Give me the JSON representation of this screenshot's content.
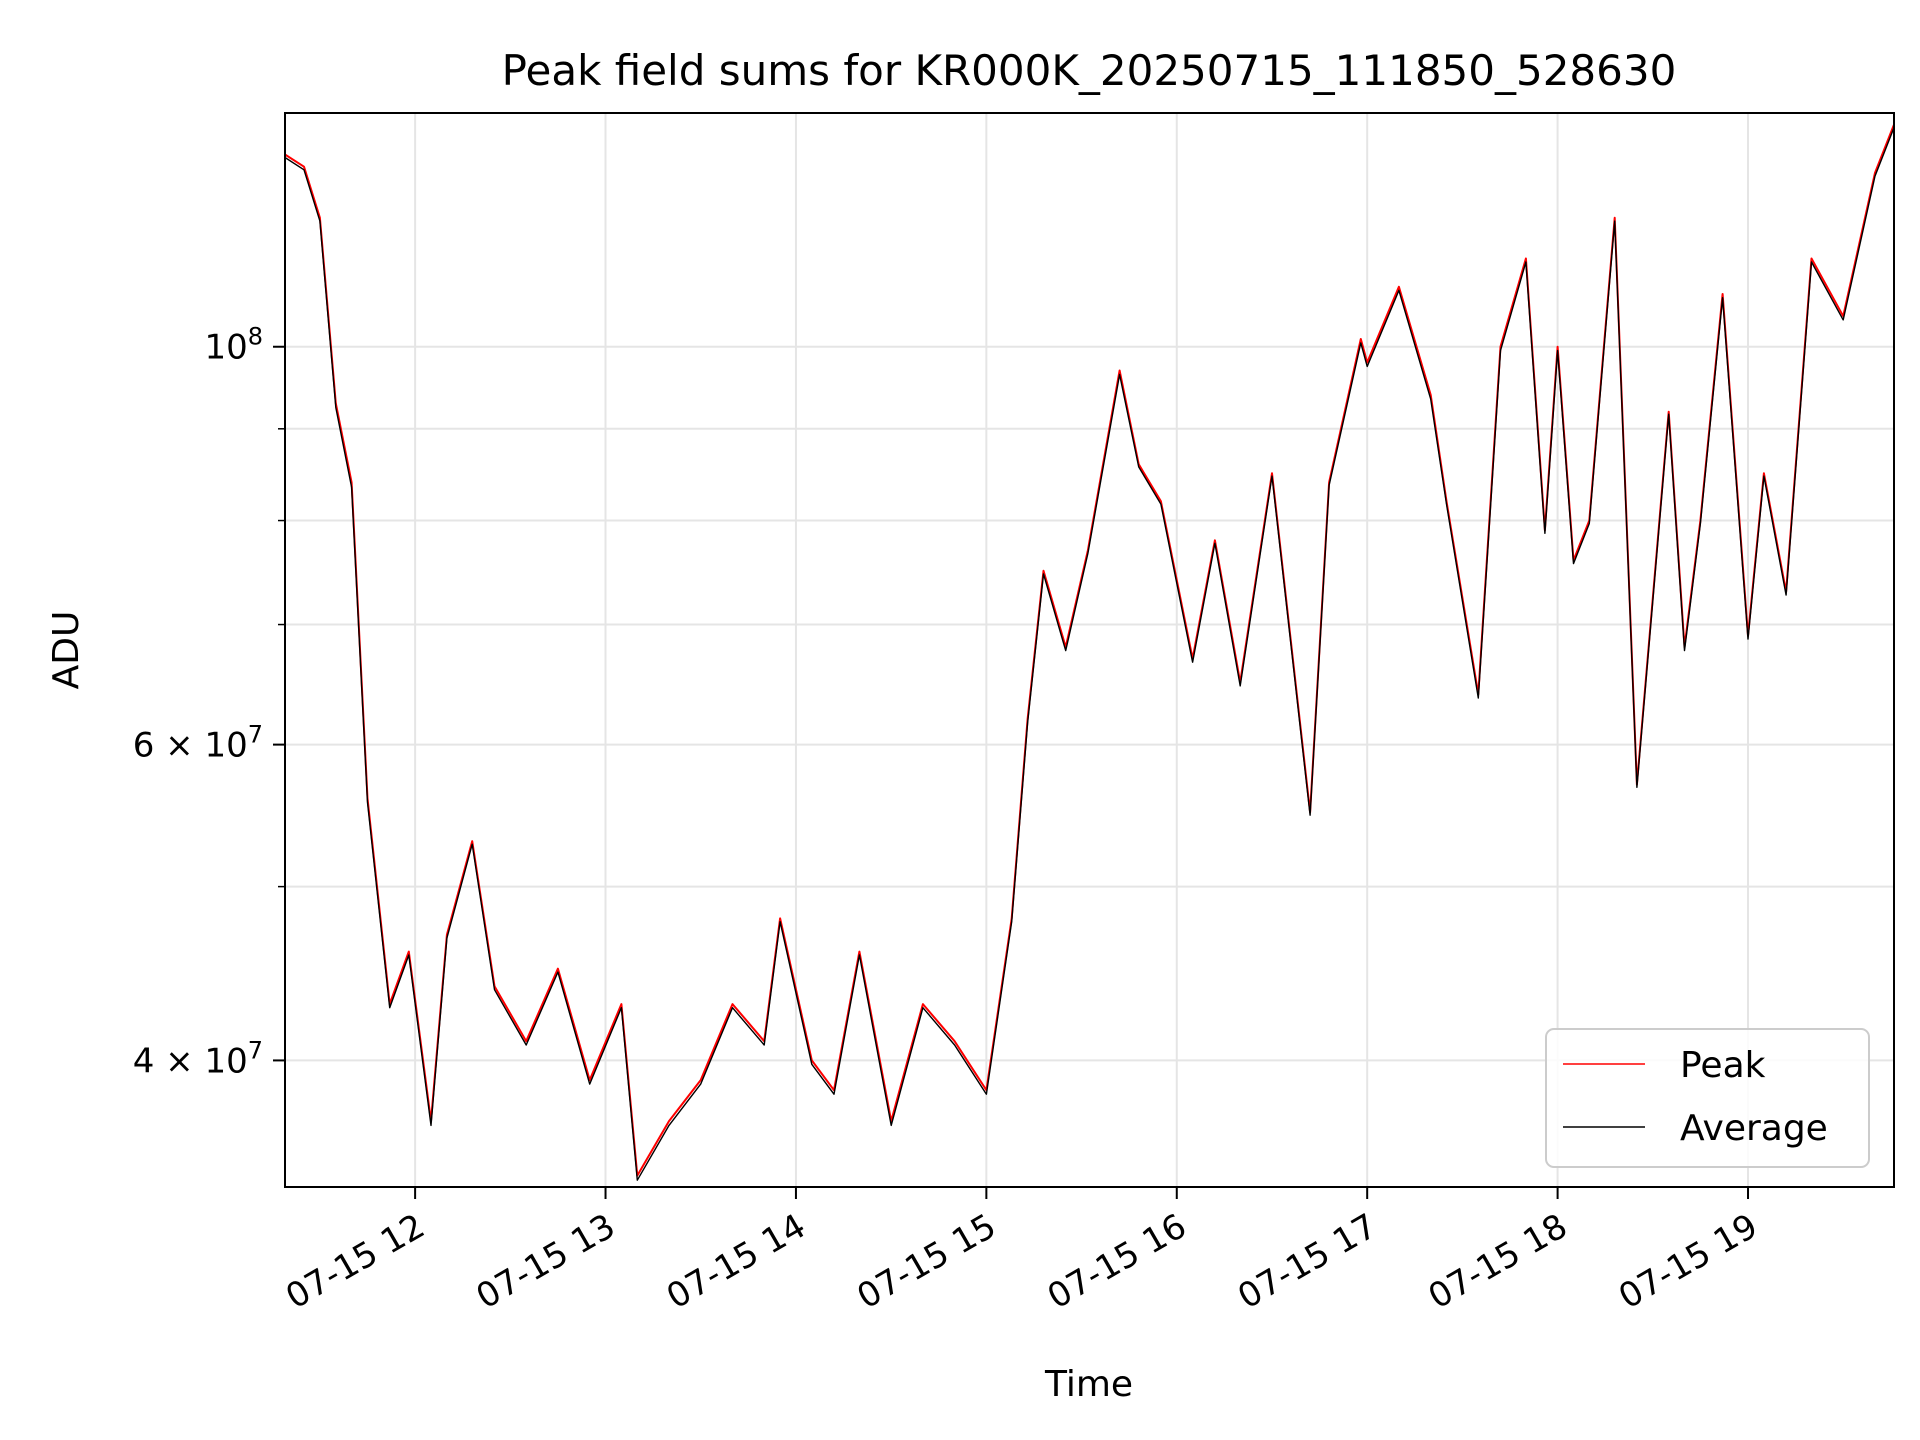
{
  "chart_data": {
    "type": "line",
    "title": "Peak field sums for KR000K_20250715_111850_528630",
    "xlabel": "Time",
    "ylabel": "ADU",
    "x_range": [
      "07-15 11:19",
      "07-15 19:46"
    ],
    "y_scale": "log",
    "ylim": [
      34000000,
      135000000
    ],
    "x_ticks": [
      "07-15 12",
      "07-15 13",
      "07-15 14",
      "07-15 15",
      "07-15 16",
      "07-15 17",
      "07-15 18",
      "07-15 19"
    ],
    "y_ticks": [
      {
        "label": "10",
        "exp": "8",
        "value": 100000000
      },
      {
        "label": "6 × 10",
        "exp": "7",
        "value": 60000000
      },
      {
        "label": "4 × 10",
        "exp": "7",
        "value": 40000000
      }
    ],
    "grid": true,
    "legend": {
      "placement": "lower-right",
      "entries": [
        "Peak",
        "Average"
      ]
    },
    "x": [
      "11:19",
      "11:25",
      "11:30",
      "11:35",
      "11:40",
      "11:45",
      "11:52",
      "11:58",
      "12:05",
      "12:10",
      "12:18",
      "12:25",
      "12:35",
      "12:45",
      "12:55",
      "13:05",
      "13:10",
      "13:20",
      "13:30",
      "13:40",
      "13:50",
      "13:55",
      "14:05",
      "14:12",
      "14:20",
      "14:30",
      "14:40",
      "14:50",
      "15:00",
      "15:08",
      "15:13",
      "15:18",
      "15:25",
      "15:32",
      "15:42",
      "15:48",
      "15:55",
      "16:05",
      "16:12",
      "16:20",
      "16:30",
      "16:42",
      "16:48",
      "16:58",
      "17:00",
      "17:10",
      "17:20",
      "17:25",
      "17:35",
      "17:42",
      "17:50",
      "17:56",
      "18:00",
      "18:05",
      "18:10",
      "18:18",
      "18:25",
      "18:35",
      "18:40",
      "18:45",
      "18:52",
      "19:00",
      "19:05",
      "19:12",
      "19:20",
      "19:30",
      "19:40",
      "19:46"
    ],
    "series": [
      {
        "name": "Peak",
        "color": "#ff0000",
        "values": [
          128000000,
          126000000,
          118000000,
          93000000,
          84000000,
          56000000,
          43000000,
          46000000,
          37000000,
          47000000,
          53000000,
          44000000,
          41000000,
          45000000,
          39000000,
          43000000,
          34500000,
          37000000,
          39000000,
          43000000,
          41000000,
          48000000,
          40000000,
          38500000,
          46000000,
          37000000,
          43000000,
          41000000,
          38500000,
          48000000,
          62000000,
          75000000,
          68000000,
          77000000,
          97000000,
          86000000,
          82000000,
          67000000,
          78000000,
          65000000,
          85000000,
          55000000,
          84000000,
          101000000,
          98000000,
          108000000,
          94000000,
          82000000,
          64000000,
          100000000,
          112000000,
          79000000,
          100000000,
          76000000,
          80000000,
          118000000,
          57000000,
          92000000,
          68000000,
          80000000,
          107000000,
          69000000,
          85000000,
          73000000,
          112000000,
          104000000,
          125000000,
          133000000
        ]
      },
      {
        "name": "Average",
        "color": "#000000",
        "values": [
          127500000,
          125500000,
          117500000,
          92500000,
          83500000,
          55700000,
          42800000,
          45800000,
          36800000,
          46800000,
          52800000,
          43800000,
          40800000,
          44800000,
          38800000,
          42800000,
          34300000,
          36800000,
          38800000,
          42800000,
          40800000,
          47800000,
          39800000,
          38300000,
          45800000,
          36800000,
          42800000,
          40800000,
          38300000,
          47800000,
          61700000,
          74700000,
          67700000,
          76700000,
          96500000,
          85700000,
          81700000,
          66700000,
          77700000,
          64700000,
          84700000,
          54800000,
          83700000,
          100500000,
          97500000,
          107500000,
          93500000,
          81700000,
          63700000,
          99500000,
          111500000,
          78700000,
          99500000,
          75700000,
          79700000,
          117500000,
          56800000,
          91700000,
          67700000,
          79700000,
          106500000,
          68700000,
          84700000,
          72700000,
          111500000,
          103500000,
          124500000,
          132500000
        ]
      }
    ]
  }
}
